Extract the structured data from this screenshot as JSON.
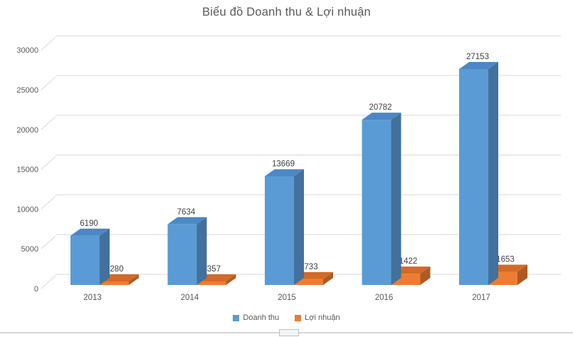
{
  "chart_data": {
    "type": "bar",
    "subtype": "3d-clustered-column",
    "title": "Biểu đồ Doanh thu & Lợi nhuận",
    "categories": [
      "2013",
      "2014",
      "2015",
      "2016",
      "2017"
    ],
    "series": [
      {
        "name": "Doanh thu",
        "color": "#5B9BD5",
        "color_side": "#41719C",
        "color_top": "#4D87C6",
        "values": [
          6190,
          7634,
          13669,
          20782,
          27153
        ]
      },
      {
        "name": "Lợi nhuận",
        "color": "#ED7D31",
        "color_side": "#AE5A21",
        "color_top": "#D26A28",
        "values": [
          280,
          357,
          733,
          1422,
          1653
        ]
      }
    ],
    "ylim": [
      0,
      30000
    ],
    "yticks": [
      0,
      5000,
      10000,
      15000,
      20000,
      25000,
      30000
    ],
    "grid": true,
    "legend_position": "bottom",
    "data_labels": true
  },
  "colors": {
    "gridline": "#D9D9D9",
    "axis_text": "#595959",
    "data_label_text": "#404040",
    "title_text": "#595959"
  }
}
